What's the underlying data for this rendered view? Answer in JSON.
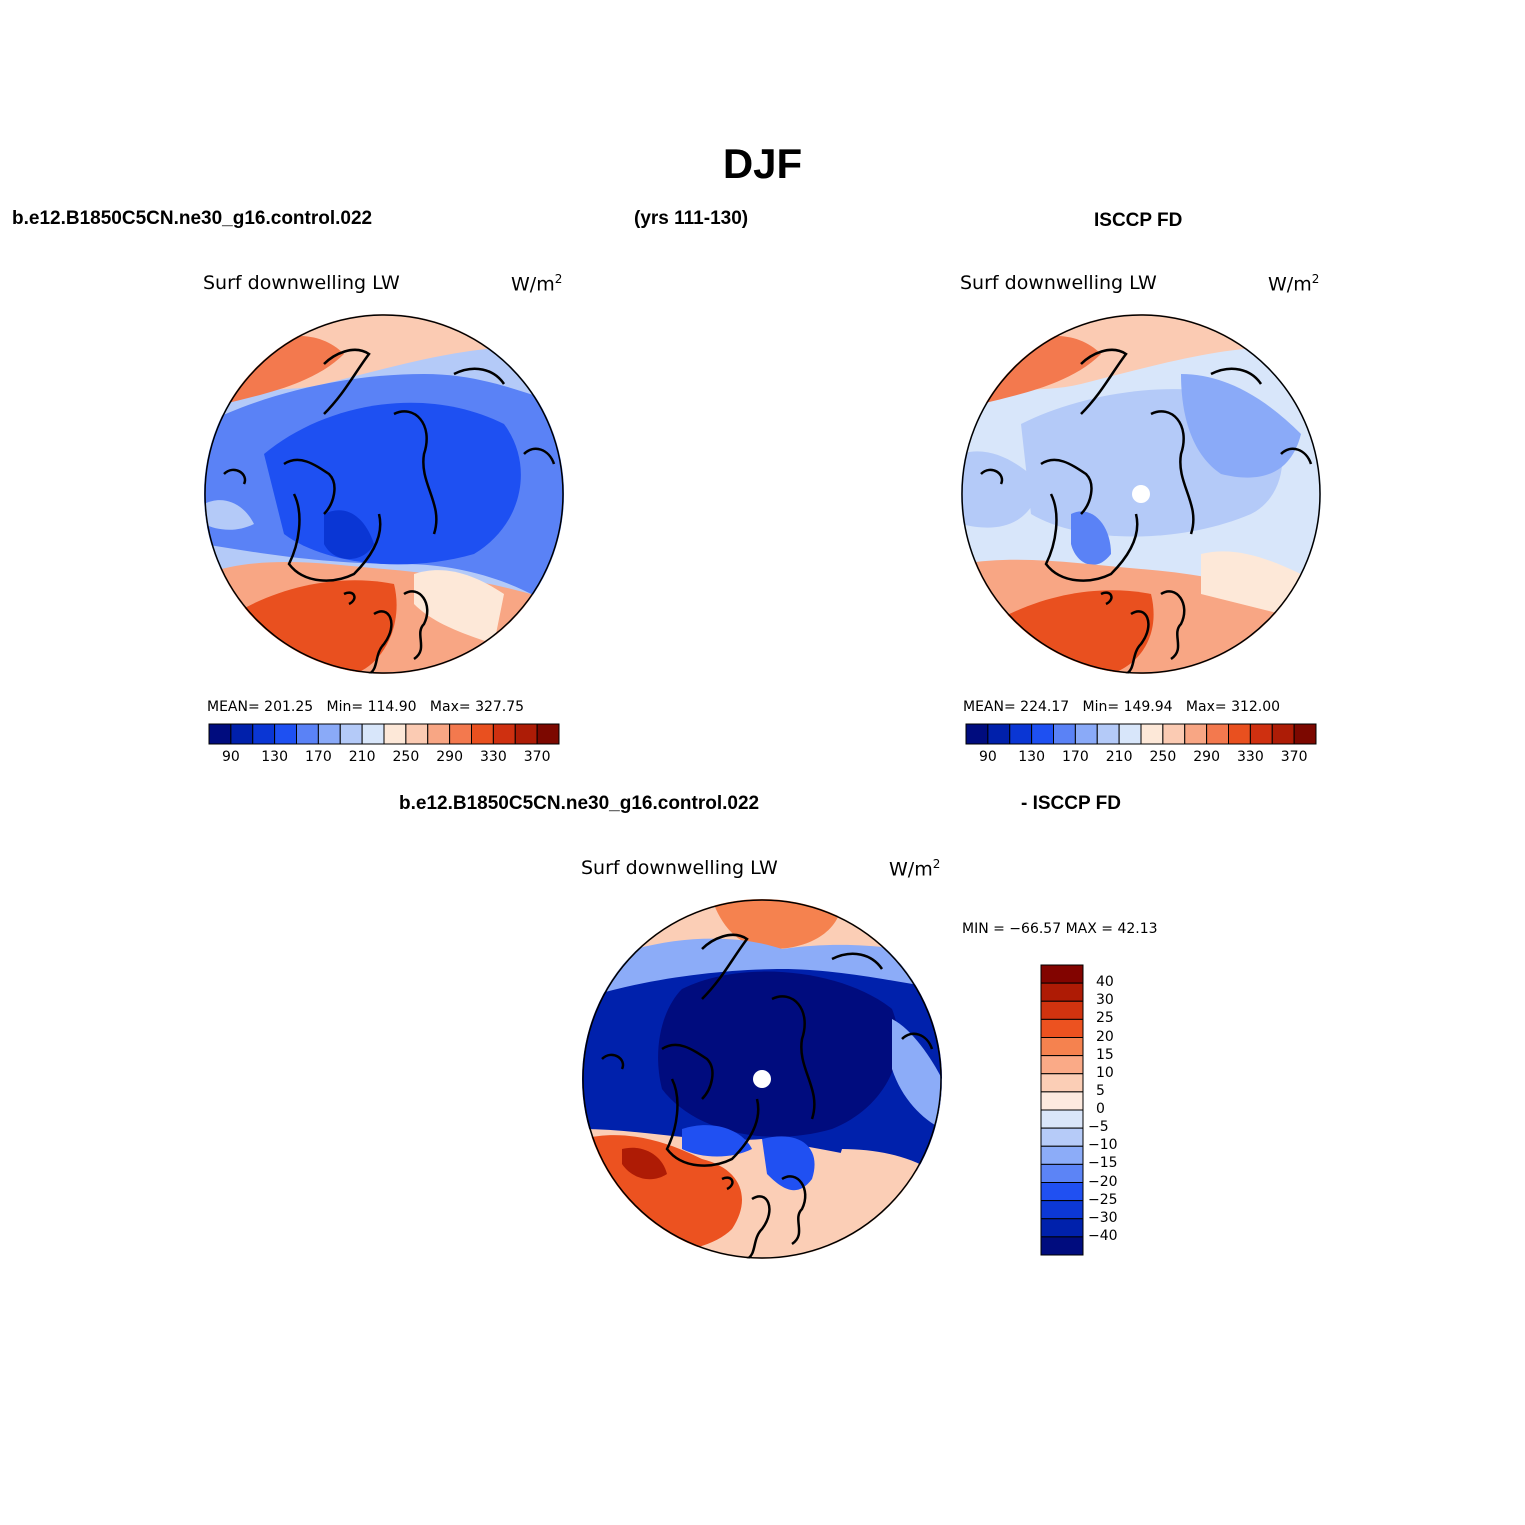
{
  "title": "DJF",
  "panel1": {
    "case": "b.e12.B1850C5CN.ne30_g16.control.022",
    "years": "(yrs 111-130)",
    "var": "Surf downwelling LW",
    "units": "W/m",
    "units_sup": "2",
    "mean_label": "MEAN=",
    "mean": "201.25",
    "min_label": "Min=",
    "min": "114.90",
    "max_label": "Max=",
    "max": "327.75"
  },
  "panel2": {
    "case": "ISCCP FD",
    "var": "Surf downwelling LW",
    "units": "W/m",
    "units_sup": "2",
    "mean_label": "MEAN=",
    "mean": "224.17",
    "min_label": "Min=",
    "min": "149.94",
    "max_label": "Max=",
    "max": "312.00"
  },
  "panel3": {
    "case_a": "b.e12.B1850C5CN.ne30_g16.control.022",
    "case_b": "- ISCCP FD",
    "var": "Surf downwelling LW",
    "units": "W/m",
    "units_sup": "2",
    "minmax": "MIN = −66.57 MAX =  42.13"
  },
  "colorbar_abs": {
    "colors": [
      "#000c7e",
      "#0020ab",
      "#0a36d4",
      "#1e50f2",
      "#5a82f6",
      "#8aaaf8",
      "#b4caf8",
      "#d8e6fa",
      "#fde8d8",
      "#fbcbb3",
      "#f8a684",
      "#f3794e",
      "#e9501f",
      "#cf3010",
      "#ad1c06",
      "#7c0800"
    ],
    "ticks": [
      "90",
      "130",
      "170",
      "210",
      "250",
      "290",
      "330",
      "370"
    ]
  },
  "colorbar_diff": {
    "colors": [
      "#820400",
      "#ae1b05",
      "#d1330f",
      "#ec5220",
      "#f5824f",
      "#faaa87",
      "#fbceb6",
      "#fdeadf",
      "#dae6fa",
      "#b6cbf8",
      "#8cacf8",
      "#5c84f6",
      "#2050f2",
      "#0c38d6",
      "#0021ac",
      "#000c7e"
    ],
    "ticks": [
      "40",
      "30",
      "25",
      "20",
      "15",
      "10",
      "5",
      "0",
      "−5",
      "−10",
      "−15",
      "−20",
      "−25",
      "−30",
      "−40"
    ]
  }
}
